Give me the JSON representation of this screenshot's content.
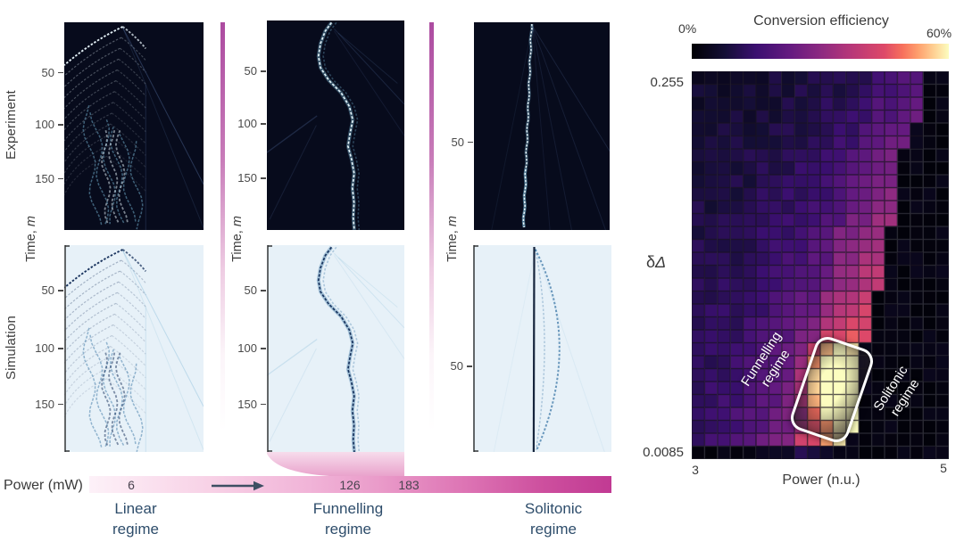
{
  "colors": {
    "accent_magenta": "#c23a94",
    "regime_label_blue": "#2e4d6b",
    "tick_gray": "#4a4a4a",
    "experiment_panel_bg": "#070b1c",
    "simulation_panel_bg": "#e7f1f8",
    "annotation_white": "#ffffff"
  },
  "left_figure": {
    "row_labels": [
      "Experiment",
      "Simulation"
    ],
    "time_label_prefix": "Time,",
    "time_label_unit": "m",
    "panels": [
      {
        "id": "exp-linear",
        "row": "Experiment",
        "regime": "Linear",
        "yticks": [
          {
            "v": "50",
            "f": 0.24
          },
          {
            "v": "100",
            "f": 0.49
          },
          {
            "v": "150",
            "f": 0.75
          }
        ]
      },
      {
        "id": "exp-funnelling",
        "row": "Experiment",
        "regime": "Funnelling",
        "yticks": [
          {
            "v": "50",
            "f": 0.24
          },
          {
            "v": "100",
            "f": 0.49
          },
          {
            "v": "150",
            "f": 0.75
          }
        ]
      },
      {
        "id": "exp-solitonic",
        "row": "Experiment",
        "regime": "Solitonic",
        "yticks": [
          {
            "v": "50",
            "f": 0.575
          }
        ]
      },
      {
        "id": "sim-linear",
        "row": "Simulation",
        "regime": "Linear",
        "yticks": [
          {
            "v": "50",
            "f": 0.216
          },
          {
            "v": "100",
            "f": 0.496
          },
          {
            "v": "150",
            "f": 0.767
          }
        ]
      },
      {
        "id": "sim-funnelling",
        "row": "Simulation",
        "regime": "Funnelling",
        "yticks": [
          {
            "v": "50",
            "f": 0.216
          },
          {
            "v": "100",
            "f": 0.496
          },
          {
            "v": "150",
            "f": 0.767
          }
        ]
      },
      {
        "id": "sim-solitonic",
        "row": "Simulation",
        "regime": "Solitonic",
        "yticks": [
          {
            "v": "50",
            "f": 0.582
          }
        ]
      }
    ]
  },
  "power_axis": {
    "label": "Power (mW)",
    "values": [
      "6",
      "126",
      "183"
    ],
    "regimes": [
      {
        "line1": "Linear",
        "line2": "regime"
      },
      {
        "line1": "Funnelling",
        "line2": "regime"
      },
      {
        "line1": "Solitonic",
        "line2": "regime"
      }
    ]
  },
  "right_figure": {
    "title": "Conversion efficiency",
    "colorbar_min": "0%",
    "colorbar_max": "60%",
    "y_top_label": "0.255",
    "y_bottom_label": "0.0085",
    "y_axis_delta": "δ",
    "y_axis_Delta": "Δ",
    "x_left": "3",
    "x_right": "5",
    "x_label": "Power (n.u.)",
    "annotation_funnelling": {
      "line1": "Funnelling",
      "line2": "regime"
    },
    "annotation_solitonic": {
      "line1": "Solitonic",
      "line2": "regime"
    }
  },
  "chart_data": [
    {
      "id": "kymograph_panels",
      "type": "heatmap",
      "description": "Six beam-propagation kymographs (space vs time). Top row: experiment (bright traces on dark navy). Bottom row: simulation (dark blue traces on pale blue). Columns correspond to linear, funnelling and solitonic regimes.",
      "rows": [
        "Experiment",
        "Simulation"
      ],
      "columns": [
        "Linear regime",
        "Funnelling regime",
        "Solitonic regime"
      ],
      "ylabel": "Time, m",
      "yticks": {
        "linear": [
          50,
          100,
          150
        ],
        "funnelling": [
          50,
          100,
          150
        ],
        "solitonic": [
          50
        ]
      }
    },
    {
      "id": "efficiency_map",
      "type": "heatmap",
      "title": "Conversion efficiency",
      "xlabel": "Power (n.u.)",
      "ylabel": "δΔ",
      "xlim": [
        3,
        5
      ],
      "ylim": [
        0.0085,
        0.255
      ],
      "value_range_pct": [
        0,
        60
      ],
      "colormap": "magma",
      "legend_position": "top",
      "n_cols": 20,
      "n_rows": 30,
      "annotations": [
        "Funnelling regime",
        "Solitonic regime"
      ],
      "highlight": "white rounded rectangle marking the maximum-efficiency cells (bright cream/orange), near the funnelling/solitonic boundary",
      "boundary_col_by_row": [
        18,
        18,
        18,
        18,
        17,
        17,
        16,
        16,
        16,
        16,
        16,
        16,
        15,
        15,
        15,
        15,
        15,
        14,
        14,
        14,
        14,
        13,
        13,
        13,
        13,
        13,
        13,
        13,
        12,
        11
      ],
      "hotspot": {
        "row": 23.5,
        "col": 10.5,
        "sigma_row": 3.0,
        "sigma_col": 2.0,
        "amp": 0.6
      },
      "magma_stops": [
        [
          0,
          "#000004"
        ],
        [
          0.13,
          "#140e36"
        ],
        [
          0.25,
          "#3b0f70"
        ],
        [
          0.38,
          "#641a80"
        ],
        [
          0.5,
          "#8c2981"
        ],
        [
          0.62,
          "#b73779"
        ],
        [
          0.75,
          "#de4968"
        ],
        [
          0.82,
          "#f7705c"
        ],
        [
          0.88,
          "#fe9f6d"
        ],
        [
          0.94,
          "#fecf92"
        ],
        [
          1,
          "#fcfdbf"
        ]
      ]
    }
  ]
}
